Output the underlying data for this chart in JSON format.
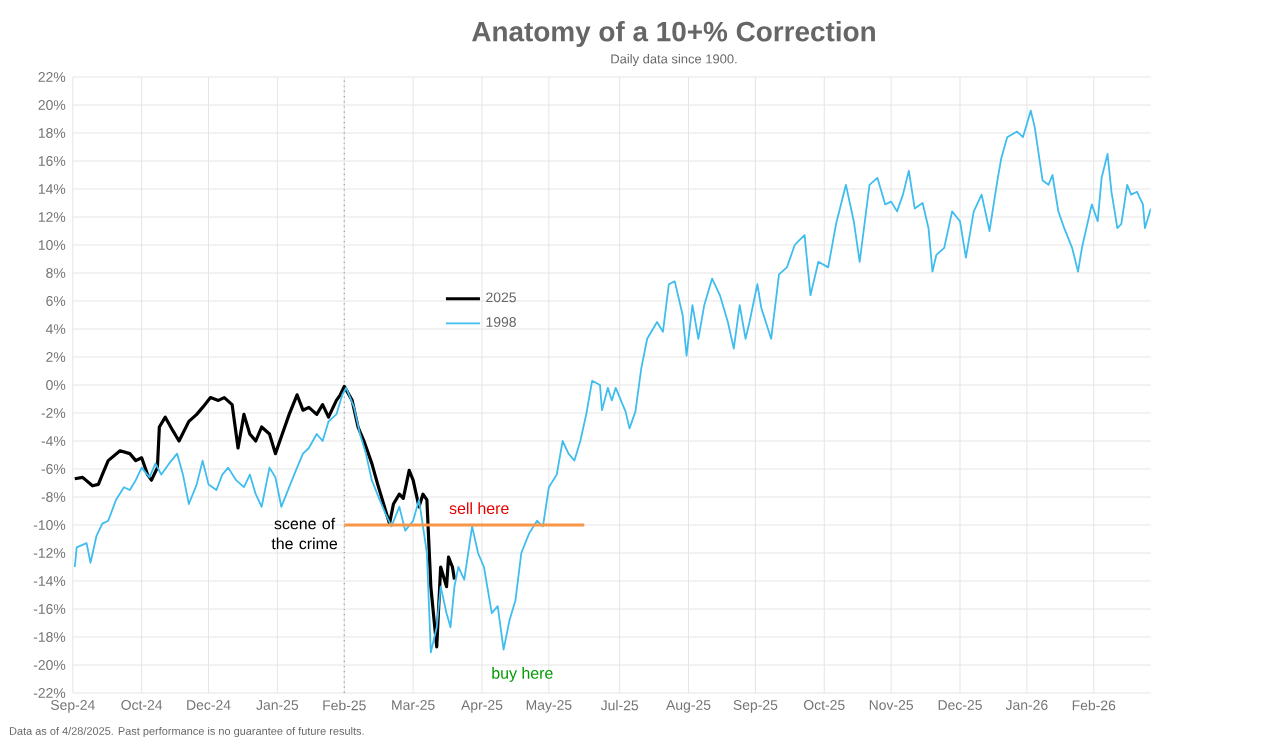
{
  "chart_data": {
    "type": "line",
    "title": "Anatomy of a 10+% Correction",
    "subtitle": "Daily data since 1900.",
    "series": [
      {
        "name": "2025",
        "color": "#000000",
        "x": [
          "2024-09-27",
          "2024-10-01",
          "2024-10-06",
          "2024-10-09",
          "2024-10-11",
          "2024-10-14",
          "2024-10-20",
          "2024-10-25",
          "2024-10-28",
          "2024-10-31",
          "2024-11-03",
          "2024-11-05",
          "2024-11-08",
          "2024-11-09",
          "2024-11-12",
          "2024-11-16",
          "2024-11-19",
          "2024-11-24",
          "2024-11-28",
          "2024-12-01",
          "2024-12-05",
          "2024-12-09",
          "2024-12-12",
          "2024-12-16",
          "2024-12-19",
          "2024-12-22",
          "2024-12-25",
          "2024-12-28",
          "2024-12-31",
          "2025-01-04",
          "2025-01-07",
          "2025-01-10",
          "2025-01-14",
          "2025-01-18",
          "2025-01-21",
          "2025-01-24",
          "2025-01-28",
          "2025-01-31",
          "2025-02-03",
          "2025-02-07",
          "2025-02-09",
          "2025-02-11",
          "2025-02-15",
          "2025-02-18",
          "2025-02-21",
          "2025-02-25",
          "2025-02-28",
          "2025-03-03",
          "2025-03-06",
          "2025-03-08",
          "2025-03-11",
          "2025-03-13",
          "2025-03-16",
          "2025-03-18",
          "2025-03-21",
          "2025-03-23",
          "2025-03-25",
          "2025-03-27",
          "2025-03-29",
          "2025-03-30",
          "2025-04-01",
          "2025-04-04",
          "2025-04-05",
          "2025-04-07",
          "2025-04-08"
        ],
        "values": [
          -6.7,
          -6.6,
          -7.2,
          -7.1,
          -6.4,
          -5.4,
          -4.7,
          -4.9,
          -5.4,
          -5.2,
          -6.4,
          -6.8,
          -5.9,
          -3.0,
          -2.3,
          -3.3,
          -4.0,
          -2.6,
          -2.1,
          -1.6,
          -0.9,
          -1.1,
          -0.9,
          -1.4,
          -4.5,
          -2.1,
          -3.5,
          -4.0,
          -3.0,
          -3.5,
          -4.9,
          -3.7,
          -2.1,
          -0.7,
          -1.8,
          -1.6,
          -2.1,
          -1.4,
          -2.3,
          -1.1,
          -0.7,
          -0.1,
          -1.1,
          -3.0,
          -4.0,
          -5.6,
          -7.1,
          -8.5,
          -9.9,
          -8.5,
          -7.8,
          -8.1,
          -6.1,
          -6.8,
          -8.7,
          -7.8,
          -8.2,
          -14.4,
          -17.3,
          -18.7,
          -13.0,
          -14.4,
          -12.3,
          -13.0,
          -13.9
        ]
      },
      {
        "name": "1998",
        "color": "#3fbdee",
        "x": [
          "2024-09-27",
          "2024-09-28",
          "2024-10-03",
          "2024-10-05",
          "2024-10-08",
          "2024-10-11",
          "2024-10-14",
          "2024-10-18",
          "2024-10-22",
          "2024-10-25",
          "2024-10-28",
          "2024-10-31",
          "2024-11-04",
          "2024-11-07",
          "2024-11-10",
          "2024-11-14",
          "2024-11-18",
          "2024-11-21",
          "2024-11-24",
          "2024-11-28",
          "2024-12-01",
          "2024-12-04",
          "2024-12-08",
          "2024-12-11",
          "2024-12-14",
          "2024-12-18",
          "2024-12-22",
          "2024-12-25",
          "2024-12-28",
          "2024-12-31",
          "2025-01-04",
          "2025-01-07",
          "2025-01-10",
          "2025-01-14",
          "2025-01-18",
          "2025-01-21",
          "2025-01-24",
          "2025-01-28",
          "2025-01-31",
          "2025-02-03",
          "2025-02-07",
          "2025-02-10",
          "2025-02-12",
          "2025-02-16",
          "2025-02-19",
          "2025-02-22",
          "2025-02-25",
          "2025-03-01",
          "2025-03-04",
          "2025-03-07",
          "2025-03-11",
          "2025-03-14",
          "2025-03-18",
          "2025-03-21",
          "2025-03-25",
          "2025-03-27",
          "2025-03-30",
          "2025-04-01",
          "2025-04-04",
          "2025-04-06",
          "2025-04-08",
          "2025-04-10",
          "2025-04-13",
          "2025-04-17",
          "2025-04-20",
          "2025-04-23",
          "2025-04-27",
          "2025-04-30",
          "2025-05-03",
          "2025-05-06",
          "2025-05-09",
          "2025-05-12",
          "2025-05-16",
          "2025-05-20",
          "2025-05-23",
          "2025-05-26",
          "2025-05-30",
          "2025-06-02",
          "2025-06-05",
          "2025-06-08",
          "2025-06-11",
          "2025-06-14",
          "2025-06-17",
          "2025-06-21",
          "2025-06-22",
          "2025-06-25",
          "2025-06-27",
          "2025-06-29",
          "2025-07-04",
          "2025-07-06",
          "2025-07-09",
          "2025-07-12",
          "2025-07-15",
          "2025-07-20",
          "2025-07-23",
          "2025-07-26",
          "2025-07-29",
          "2025-08-02",
          "2025-08-04",
          "2025-08-07",
          "2025-08-10",
          "2025-08-13",
          "2025-08-17",
          "2025-08-21",
          "2025-08-25",
          "2025-08-28",
          "2025-08-31",
          "2025-09-03",
          "2025-09-05",
          "2025-09-09",
          "2025-09-11",
          "2025-09-16",
          "2025-09-20",
          "2025-09-24",
          "2025-09-28",
          "2025-09-30",
          "2025-10-03",
          "2025-10-06",
          "2025-10-10",
          "2025-10-15",
          "2025-10-19",
          "2025-10-24",
          "2025-10-28",
          "2025-10-31",
          "2025-11-05",
          "2025-11-09",
          "2025-11-13",
          "2025-11-16",
          "2025-11-19",
          "2025-11-22",
          "2025-11-25",
          "2025-11-28",
          "2025-12-02",
          "2025-12-05",
          "2025-12-07",
          "2025-12-09",
          "2025-12-13",
          "2025-12-17",
          "2025-12-21",
          "2025-12-24",
          "2025-12-28",
          "2026-01-01",
          "2026-01-05",
          "2026-01-09",
          "2026-01-11",
          "2026-01-14",
          "2026-01-19",
          "2026-01-22",
          "2026-01-26",
          "2026-01-28",
          "2026-02-01",
          "2026-02-04",
          "2026-02-06",
          "2026-02-09",
          "2026-02-12",
          "2026-02-16",
          "2026-02-19",
          "2026-02-21",
          "2026-02-26",
          "2026-03-01",
          "2026-03-03",
          "2026-03-06",
          "2026-03-08",
          "2026-03-11",
          "2026-03-13",
          "2026-03-16",
          "2026-03-18",
          "2026-03-21",
          "2026-03-24",
          "2026-03-25",
          "2026-03-28"
        ],
        "values": [
          -13.0,
          -11.6,
          -11.3,
          -12.7,
          -10.8,
          -9.9,
          -9.7,
          -8.2,
          -7.3,
          -7.5,
          -6.8,
          -5.9,
          -6.6,
          -5.6,
          -6.4,
          -5.6,
          -4.9,
          -6.4,
          -8.5,
          -7.1,
          -5.4,
          -7.1,
          -7.5,
          -6.4,
          -5.9,
          -6.8,
          -7.3,
          -6.4,
          -7.8,
          -8.7,
          -5.9,
          -6.6,
          -8.7,
          -7.3,
          -5.9,
          -4.9,
          -4.5,
          -3.5,
          -4.0,
          -2.6,
          -2.1,
          -0.7,
          -0.2,
          -1.6,
          -3.5,
          -4.9,
          -6.8,
          -8.2,
          -9.2,
          -10.1,
          -8.7,
          -10.4,
          -9.7,
          -8.2,
          -12.0,
          -19.1,
          -17.3,
          -14.4,
          -16.3,
          -17.3,
          -14.4,
          -13.0,
          -13.9,
          -10.1,
          -12.0,
          -13.0,
          -16.3,
          -15.8,
          -18.9,
          -16.8,
          -15.4,
          -12.0,
          -10.6,
          -9.7,
          -10.1,
          -7.3,
          -6.4,
          -4.0,
          -4.9,
          -5.4,
          -4.0,
          -2.1,
          0.3,
          0.0,
          -1.8,
          -0.2,
          -1.1,
          -0.2,
          -1.9,
          -3.1,
          -1.9,
          1.2,
          3.3,
          4.5,
          3.8,
          7.2,
          7.4,
          5.0,
          2.1,
          5.7,
          3.3,
          5.7,
          7.6,
          6.4,
          4.5,
          2.6,
          5.7,
          3.3,
          4.5,
          7.2,
          5.5,
          3.3,
          7.9,
          8.4,
          10.0,
          10.3,
          10.7,
          6.4,
          8.8,
          8.4,
          11.5,
          14.3,
          11.7,
          8.8,
          14.3,
          14.8,
          12.9,
          13.1,
          12.4,
          13.6,
          15.3,
          12.6,
          13.0,
          11.2,
          8.1,
          9.3,
          9.8,
          12.4,
          11.7,
          9.1,
          12.4,
          13.6,
          11.0,
          14.6,
          16.2,
          17.7,
          18.1,
          17.7,
          19.6,
          18.4,
          14.6,
          14.3,
          15.0,
          12.4,
          11.2,
          9.8,
          8.1,
          9.8,
          12.9,
          11.7,
          14.8,
          16.5,
          13.8,
          11.2,
          11.5,
          14.3,
          13.6,
          13.8,
          12.9,
          11.2,
          12.6
        ]
      },
      {
        "type": "line",
        "color": "#f79646",
        "x": [
          "2025-02-11",
          "2025-06-13"
        ],
        "values": [
          -10,
          -10
        ]
      }
    ],
    "xlim": [
      "2024-09-26",
      "2026-03-28"
    ],
    "xticks": [
      {
        "value": "2024-09-26",
        "label": "Sep-24"
      },
      {
        "value": "2024-10-31",
        "label": "Oct-24"
      },
      {
        "value": "2024-12-04",
        "label": "Dec-24"
      },
      {
        "value": "2025-01-08",
        "label": "Jan-25"
      },
      {
        "value": "2025-02-11",
        "label": "Feb-25"
      },
      {
        "value": "2025-03-18",
        "label": "Mar-25"
      },
      {
        "value": "2025-04-22",
        "label": "Apr-25"
      },
      {
        "value": "2025-05-26",
        "label": "May-25"
      },
      {
        "value": "2025-07-01",
        "label": "Jul-25"
      },
      {
        "value": "2025-08-05",
        "label": "Aug-25"
      },
      {
        "value": "2025-09-08",
        "label": "Sep-25"
      },
      {
        "value": "2025-10-13",
        "label": "Oct-25"
      },
      {
        "value": "2025-11-16",
        "label": "Nov-25"
      },
      {
        "value": "2025-12-21",
        "label": "Dec-25"
      },
      {
        "value": "2026-01-24",
        "label": "Jan-26"
      },
      {
        "value": "2026-02-27",
        "label": "Feb-26"
      }
    ],
    "ylim": [
      -22,
      22
    ],
    "yticks": [
      {
        "value": 22,
        "label": "22%"
      },
      {
        "value": 20,
        "label": "20%"
      },
      {
        "value": 18,
        "label": "18%"
      },
      {
        "value": 16,
        "label": "16%"
      },
      {
        "value": 14,
        "label": "14%"
      },
      {
        "value": 12,
        "label": "12%"
      },
      {
        "value": 10,
        "label": "10%"
      },
      {
        "value": 8,
        "label": "8%"
      },
      {
        "value": 6,
        "label": "6%"
      },
      {
        "value": 4,
        "label": "4%"
      },
      {
        "value": 2,
        "label": "2%"
      },
      {
        "value": 0,
        "label": "0%"
      },
      {
        "value": -2,
        "label": "-2%"
      },
      {
        "value": -4,
        "label": "-4%"
      },
      {
        "value": -6,
        "label": "-6%"
      },
      {
        "value": -8,
        "label": "-8%"
      },
      {
        "value": -10,
        "label": "-10%"
      },
      {
        "value": -12,
        "label": "-12%"
      },
      {
        "value": -14,
        "label": "-14%"
      },
      {
        "value": -16,
        "label": "-16%"
      },
      {
        "value": -18,
        "label": "-18%"
      },
      {
        "value": -20,
        "label": "-20%"
      },
      {
        "value": -22,
        "label": "-22%"
      }
    ],
    "ref_lines": [
      {
        "axis": "x",
        "value": "2025-02-11",
        "color": "#999999",
        "line_style": "dotted"
      }
    ],
    "annotations": [
      "sell here",
      "scene of the crime",
      "buy here",
      "Data as of 4/28/2025. Past performance is no guarantee of future results."
    ],
    "grid": true,
    "legend": "center"
  }
}
